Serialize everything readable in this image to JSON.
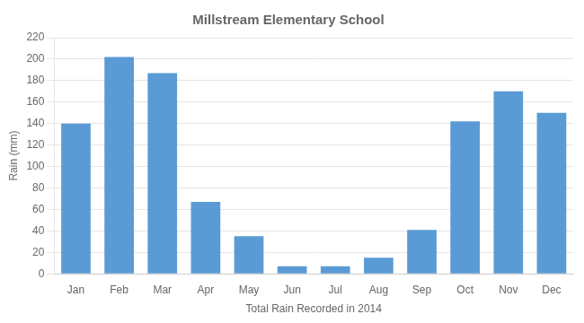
{
  "chart_data": {
    "type": "bar",
    "title": "Millstream Elementary School",
    "xlabel": "Total Rain Recorded in 2014",
    "ylabel": "Rain (mm)",
    "categories": [
      "Jan",
      "Feb",
      "Mar",
      "Apr",
      "May",
      "Jun",
      "Jul",
      "Aug",
      "Sep",
      "Oct",
      "Nov",
      "Dec"
    ],
    "values": [
      140,
      202,
      187,
      67,
      35,
      7,
      7,
      15,
      41,
      142,
      170,
      150
    ],
    "color": "#5b9bd5",
    "ylim": [
      0,
      220
    ],
    "yticks": [
      0,
      20,
      40,
      60,
      80,
      100,
      120,
      140,
      160,
      180,
      200,
      220
    ],
    "grid": true
  }
}
